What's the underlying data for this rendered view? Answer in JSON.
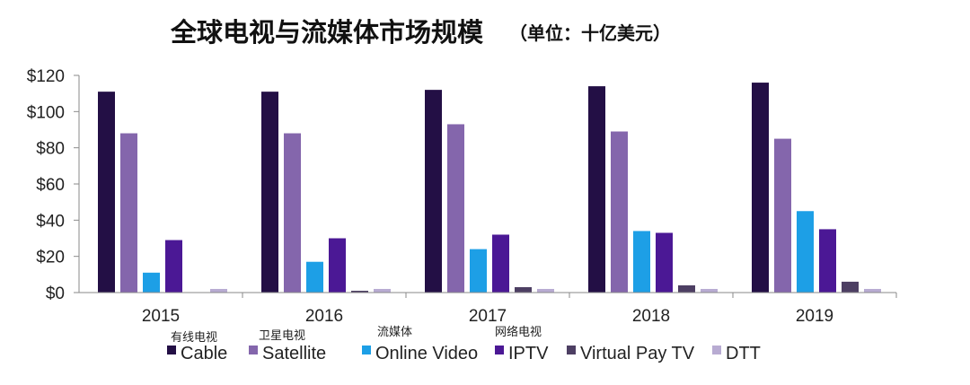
{
  "chart_data": {
    "type": "bar",
    "title": "全球电视与流媒体市场规模",
    "subtitle": "（单位：十亿美元）",
    "categories": [
      "2015",
      "2016",
      "2017",
      "2018",
      "2019"
    ],
    "ylim": [
      0,
      120
    ],
    "yticks": [
      "$0",
      "$20",
      "$40",
      "$60",
      "$80",
      "$100",
      "$120"
    ],
    "grid": false,
    "legend_position": "bottom",
    "series": [
      {
        "name": "Cable",
        "cn_label": "有线电视",
        "color": "#230f45",
        "values": [
          111,
          111,
          112,
          114,
          116
        ]
      },
      {
        "name": "Satellite",
        "cn_label": "卫星电视",
        "color": "#8466ac",
        "values": [
          88,
          88,
          93,
          89,
          85
        ]
      },
      {
        "name": "Online Video",
        "cn_label": "流媒体",
        "color": "#1d9fe6",
        "values": [
          11,
          17,
          24,
          34,
          45
        ]
      },
      {
        "name": "IPTV",
        "cn_label": "网络电视",
        "color": "#4b1895",
        "values": [
          29,
          30,
          32,
          33,
          35
        ]
      },
      {
        "name": "Virtual Pay TV",
        "cn_label": "",
        "color": "#4d3f63",
        "values": [
          0,
          1,
          3,
          4,
          6
        ]
      },
      {
        "name": "DTT",
        "cn_label": "",
        "color": "#b8abd2",
        "values": [
          2,
          2,
          2,
          2,
          2
        ]
      }
    ]
  }
}
